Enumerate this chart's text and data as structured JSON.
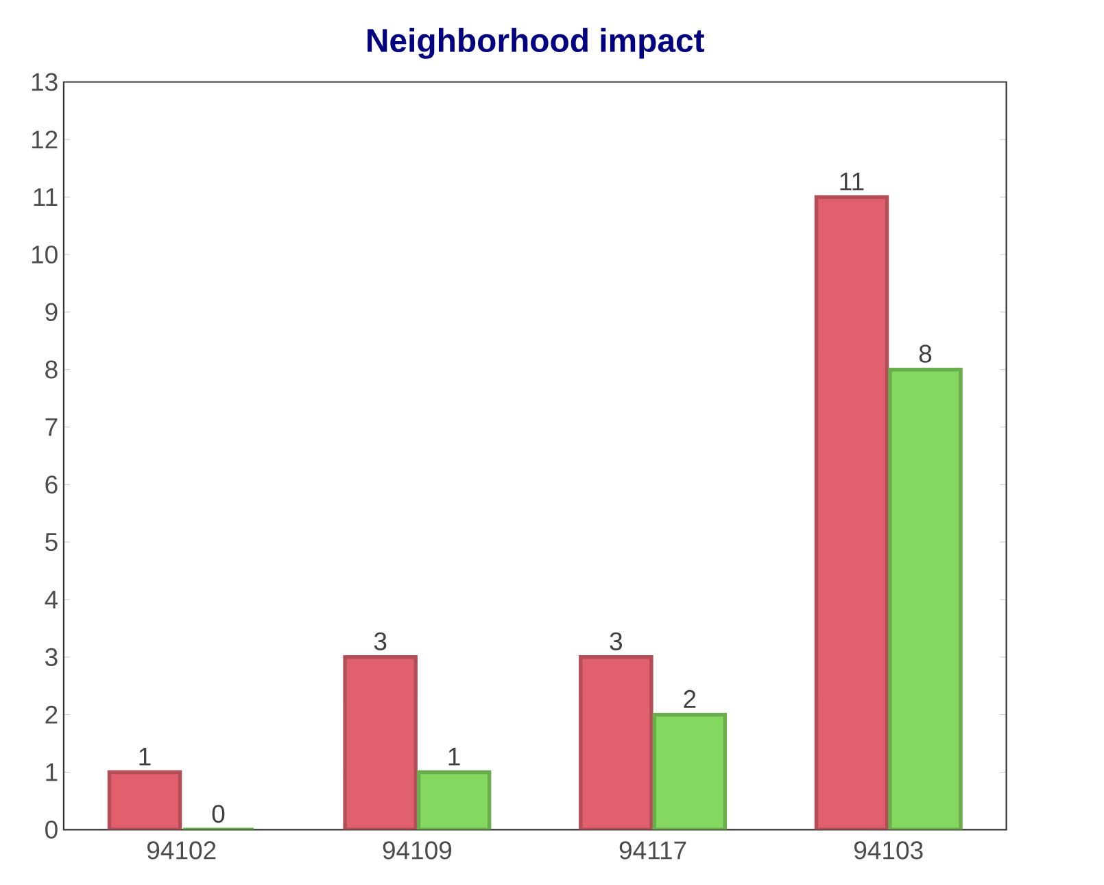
{
  "chart_data": {
    "type": "bar",
    "title": "Neighborhood impact",
    "categories": [
      "94102",
      "94109",
      "94117",
      "94103"
    ],
    "series": [
      {
        "color": "#e0606e",
        "values": [
          1,
          3,
          3,
          11
        ]
      },
      {
        "color": "#84d860",
        "values": [
          0,
          1,
          2,
          8
        ]
      }
    ],
    "ylim": [
      0,
      13
    ],
    "yticks": [
      0,
      1,
      2,
      3,
      4,
      5,
      6,
      7,
      8,
      9,
      10,
      11,
      12,
      13
    ],
    "data_labels": true
  }
}
